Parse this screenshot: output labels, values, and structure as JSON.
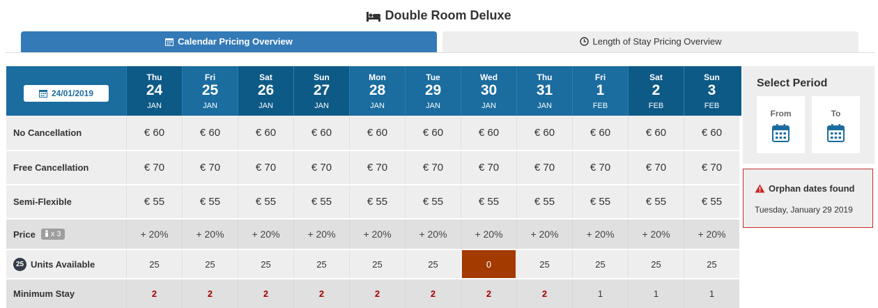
{
  "title": "Double Room Deluxe",
  "tabs": {
    "calendar": "Calendar Pricing Overview",
    "los": "Length of Stay Pricing Overview"
  },
  "date_button": "24/01/2019",
  "days": [
    {
      "dow": "Thu",
      "num": "24",
      "mon": "JAN"
    },
    {
      "dow": "Fri",
      "num": "25",
      "mon": "JAN"
    },
    {
      "dow": "Sat",
      "num": "26",
      "mon": "JAN"
    },
    {
      "dow": "Sun",
      "num": "27",
      "mon": "JAN"
    },
    {
      "dow": "Mon",
      "num": "28",
      "mon": "JAN"
    },
    {
      "dow": "Tue",
      "num": "29",
      "mon": "JAN"
    },
    {
      "dow": "Wed",
      "num": "30",
      "mon": "JAN"
    },
    {
      "dow": "Thu",
      "num": "31",
      "mon": "JAN"
    },
    {
      "dow": "Fri",
      "num": "1",
      "mon": "FEB"
    },
    {
      "dow": "Sat",
      "num": "2",
      "mon": "FEB"
    },
    {
      "dow": "Sun",
      "num": "3",
      "mon": "FEB"
    }
  ],
  "rows": {
    "no_cancellation": {
      "label": "No Cancellation",
      "values": [
        "€ 60",
        "€ 60",
        "€ 60",
        "€ 60",
        "€ 60",
        "€ 60",
        "€ 60",
        "€ 60",
        "€ 60",
        "€ 60",
        "€ 60"
      ]
    },
    "free_cancellation": {
      "label": "Free Cancellation",
      "values": [
        "€ 70",
        "€ 70",
        "€ 70",
        "€ 70",
        "€ 70",
        "€ 70",
        "€ 70",
        "€ 70",
        "€ 70",
        "€ 70",
        "€ 70"
      ]
    },
    "semi_flexible": {
      "label": "Semi-Flexible",
      "values": [
        "€ 55",
        "€ 55",
        "€ 55",
        "€ 55",
        "€ 55",
        "€ 55",
        "€ 55",
        "€ 55",
        "€ 55",
        "€ 55",
        "€ 55"
      ]
    },
    "price": {
      "label": "Price",
      "badge": "x 3",
      "values": [
        "+ 20%",
        "+ 20%",
        "+ 20%",
        "+ 20%",
        "+ 20%",
        "+ 20%",
        "+ 20%",
        "+ 20%",
        "+ 20%",
        "+ 20%",
        "+ 20%"
      ]
    },
    "units": {
      "label": "Units Available",
      "circle": "25",
      "values": [
        "25",
        "25",
        "25",
        "25",
        "25",
        "25",
        "0",
        "25",
        "25",
        "25",
        "25"
      ]
    },
    "min_stay": {
      "label": "Minimum Stay",
      "values": [
        "2",
        "2",
        "2",
        "2",
        "2",
        "2",
        "2",
        "2",
        "1",
        "1",
        "1"
      ]
    }
  },
  "period": {
    "title": "Select Period",
    "from": "From",
    "to": "To"
  },
  "alert": {
    "title": "Orphan dates found",
    "text": "Tuesday, January 29 2019"
  },
  "colors": {
    "header_blue": "#1b6c9f",
    "header_dark": "#0e5a86",
    "tab_active": "#337ab7",
    "zero_units": "#a33a00",
    "min_stay_red": "#a50000",
    "alert_border": "#c62828"
  }
}
